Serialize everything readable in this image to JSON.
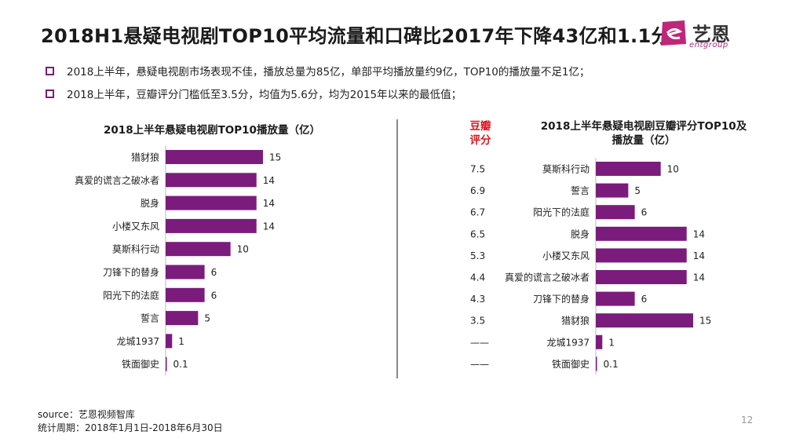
{
  "header": {
    "title": "2018H1悬疑电视剧TOP10平均流量和口碑比2017年下降43亿和1.1分",
    "logo_text": "艺恩",
    "logo_sub": "entgroup"
  },
  "bullets": [
    "2018上半年，悬疑电视剧市场表现不佳，播放总量为85亿，单部平均播放量约9亿，TOP10的播放量不足1亿；",
    "2018上半年，豆瓣评分门槛低至3.5分，均值为5.6分，均为2015年以来的最低值；"
  ],
  "left_chart_title": "2018上半年悬疑电视剧TOP10播放量（亿）",
  "right_chart_title_line1": "2018上半年悬疑电视剧豆瓣评分TOP10及",
  "right_chart_title_line2": "播放量（亿）",
  "score_header_line1": "豆瓣",
  "score_header_line2": "评分",
  "colors": {
    "bar": "#7b1b7c",
    "accent_red": "#e0141e",
    "bullet": "#7b1b7c"
  },
  "chart_data": [
    {
      "type": "bar",
      "orientation": "horizontal",
      "title": "2018上半年悬疑电视剧TOP10播放量（亿）",
      "categories": [
        "猎豺狼",
        "真爱的谎言之破冰者",
        "脱身",
        "小楼又东风",
        "莫斯科行动",
        "刀锋下的替身",
        "阳光下的法庭",
        "誓言",
        "龙城1937",
        "铁面御史"
      ],
      "values": [
        15,
        14,
        14,
        14,
        10,
        6,
        6,
        5,
        1,
        0.1
      ],
      "value_labels": [
        "15",
        "14",
        "14",
        "14",
        "10",
        "6",
        "6",
        "5",
        "1",
        "0.1"
      ],
      "xlim": [
        0,
        15
      ]
    },
    {
      "type": "bar",
      "orientation": "horizontal",
      "title": "2018上半年悬疑电视剧豆瓣评分TOP10及播放量（亿）",
      "categories": [
        "莫斯科行动",
        "誓言",
        "阳光下的法庭",
        "脱身",
        "小楼又东风",
        "真爱的谎言之破冰者",
        "刀锋下的替身",
        "猎豺狼",
        "龙城1937",
        "铁面御史"
      ],
      "values": [
        10,
        5,
        6,
        14,
        14,
        14,
        6,
        15,
        1,
        0.1
      ],
      "value_labels": [
        "10",
        "5",
        "6",
        "14",
        "14",
        "14",
        "6",
        "15",
        "1",
        "0.1"
      ],
      "scores": [
        "7.5",
        "6.9",
        "6.7",
        "6.5",
        "5.3",
        "4.4",
        "4.3",
        "3.5",
        "——",
        "——"
      ],
      "xlim": [
        0,
        15
      ]
    }
  ],
  "footer": {
    "source": "source：艺恩视频智库",
    "period": "统计周期：2018年1月1日-2018年6月30日"
  },
  "page_number": "12"
}
